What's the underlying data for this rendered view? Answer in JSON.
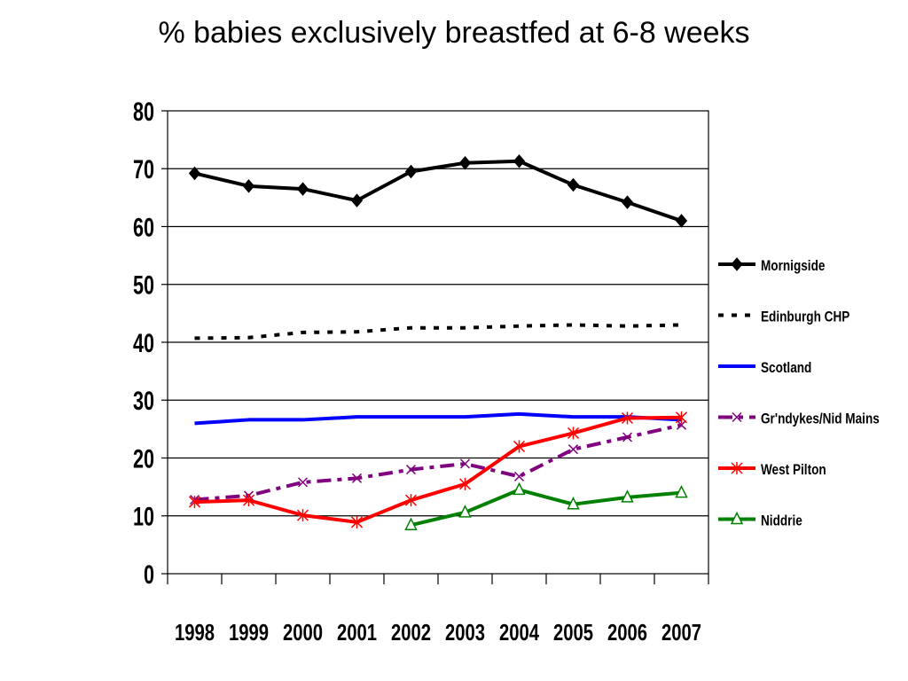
{
  "chart_data": {
    "type": "line",
    "title": "% babies exclusively breastfed at 6-8 weeks",
    "xlabel": "",
    "ylabel": "",
    "x": [
      "1998",
      "1999",
      "2000",
      "2001",
      "2002",
      "2003",
      "2004",
      "2005",
      "2006",
      "2007"
    ],
    "ylim": [
      0,
      80
    ],
    "yticks": [
      0,
      10,
      20,
      30,
      40,
      50,
      60,
      70,
      80
    ],
    "grid": true,
    "legend_position": "right",
    "series": [
      {
        "name": "Mornigside",
        "color": "#000000",
        "style": "solid",
        "marker": "diamond",
        "values": [
          69.2,
          67.0,
          66.5,
          64.5,
          69.5,
          71.0,
          71.3,
          67.2,
          64.2,
          61.0
        ]
      },
      {
        "name": "Edinburgh CHP",
        "color": "#000000",
        "style": "dotted",
        "marker": "none",
        "values": [
          40.7,
          40.8,
          41.7,
          41.8,
          42.5,
          42.5,
          42.8,
          43.0,
          42.8,
          43.0
        ]
      },
      {
        "name": "Scotland",
        "color": "#0000ff",
        "style": "solid",
        "marker": "none",
        "values": [
          26.0,
          26.6,
          26.6,
          27.1,
          27.1,
          27.1,
          27.6,
          27.1,
          27.1,
          26.6
        ]
      },
      {
        "name": "Gr'ndykes/Nid Mains",
        "color": "#800080",
        "style": "dashdot",
        "marker": "x",
        "values": [
          12.8,
          13.5,
          15.8,
          16.5,
          18.0,
          19.0,
          16.8,
          21.5,
          23.6,
          25.7
        ]
      },
      {
        "name": "West Pilton",
        "color": "#ff0000",
        "style": "solid",
        "marker": "star",
        "values": [
          12.4,
          12.7,
          10.1,
          8.9,
          12.7,
          15.5,
          22.0,
          24.3,
          26.9,
          27.0
        ]
      },
      {
        "name": "Niddrie",
        "color": "#008000",
        "style": "solid",
        "marker": "triangle",
        "values": [
          null,
          null,
          null,
          null,
          8.4,
          10.6,
          14.5,
          12.0,
          13.2,
          14.0
        ]
      }
    ]
  }
}
